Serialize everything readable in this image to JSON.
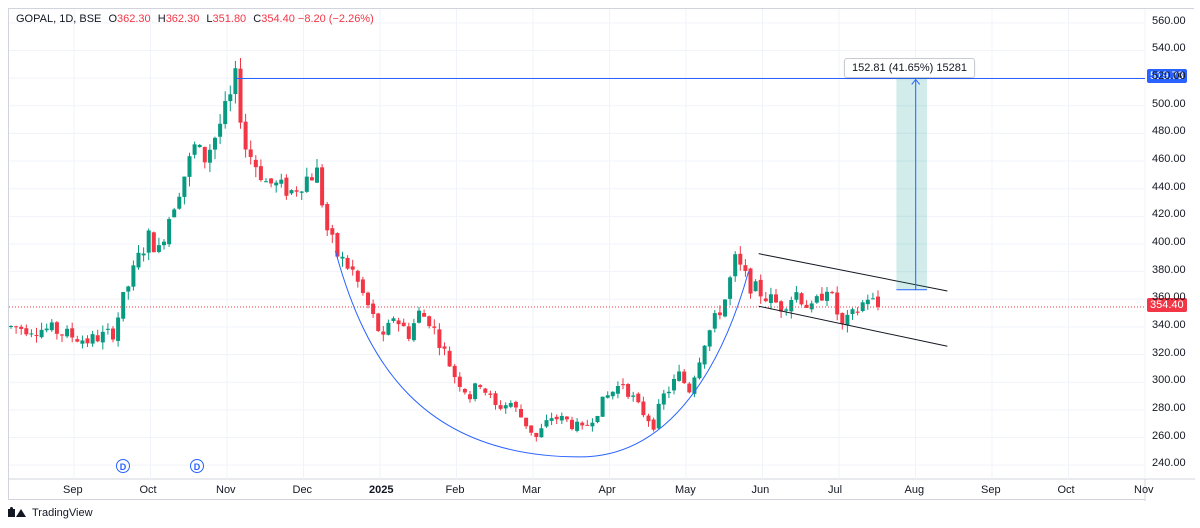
{
  "header": {
    "symbol": "GOPAL, 1D, BSE",
    "open_label": "O",
    "open": "362.30",
    "high_label": "H",
    "high": "362.30",
    "low_label": "L",
    "low": "351.80",
    "close_label": "C",
    "close": "354.40",
    "change": "−8.20 (−2.26%)"
  },
  "footer": {
    "brand": "TradingView"
  },
  "measure": {
    "label": "152.81 (41.65%) 15281"
  },
  "price_tags": {
    "target": "519.73",
    "last": "354.40"
  },
  "dividend_markers": [
    {
      "label": "D"
    },
    {
      "label": "D"
    }
  ],
  "colors": {
    "up": "#089981",
    "down": "#f23645",
    "line": "#2962ff",
    "grid": "#f0f3fa"
  },
  "chart_data": {
    "type": "candlestick",
    "x_axis_labels": [
      "Sep",
      "Oct",
      "Nov",
      "Dec",
      "2025",
      "Feb",
      "Mar",
      "Apr",
      "May",
      "Jun",
      "Jul",
      "Aug",
      "Sep",
      "Oct",
      "Nov"
    ],
    "y_axis_labels": [
      "560.00",
      "540.00",
      "520.00",
      "500.00",
      "480.00",
      "460.00",
      "440.00",
      "420.00",
      "400.00",
      "380.00",
      "360.00",
      "340.00",
      "320.00",
      "300.00",
      "280.00",
      "260.00",
      "240.00"
    ],
    "ylim": [
      230,
      570
    ],
    "price_path": [
      [
        0,
        340
      ],
      [
        8,
        338
      ],
      [
        15,
        330
      ],
      [
        20,
        336
      ],
      [
        22,
        360
      ],
      [
        25,
        390
      ],
      [
        27,
        405
      ],
      [
        29,
        395
      ],
      [
        31,
        420
      ],
      [
        33,
        440
      ],
      [
        36,
        470
      ],
      [
        38,
        462
      ],
      [
        40,
        478
      ],
      [
        43,
        505
      ],
      [
        44,
        519
      ],
      [
        46,
        470
      ],
      [
        50,
        445
      ],
      [
        55,
        438
      ],
      [
        58,
        448
      ],
      [
        60,
        452
      ],
      [
        62,
        410
      ],
      [
        64,
        392
      ],
      [
        67,
        380
      ],
      [
        70,
        355
      ],
      [
        73,
        330
      ],
      [
        75,
        348
      ],
      [
        78,
        335
      ],
      [
        80,
        350
      ],
      [
        82,
        345
      ],
      [
        84,
        330
      ],
      [
        87,
        305
      ],
      [
        90,
        290
      ],
      [
        92,
        300
      ],
      [
        95,
        282
      ],
      [
        98,
        285
      ],
      [
        101,
        270
      ],
      [
        103,
        260
      ],
      [
        106,
        275
      ],
      [
        109,
        272
      ],
      [
        112,
        265
      ],
      [
        115,
        280
      ],
      [
        117,
        290
      ],
      [
        120,
        300
      ],
      [
        123,
        282
      ],
      [
        126,
        270
      ],
      [
        128,
        290
      ],
      [
        131,
        305
      ],
      [
        133,
        295
      ],
      [
        136,
        330
      ],
      [
        138,
        345
      ],
      [
        140,
        360
      ],
      [
        142,
        388
      ],
      [
        145,
        370
      ],
      [
        148,
        362
      ],
      [
        151,
        355
      ],
      [
        154,
        365
      ],
      [
        157,
        352
      ],
      [
        160,
        370
      ],
      [
        163,
        340
      ],
      [
        166,
        352
      ],
      [
        168,
        362
      ],
      [
        170,
        354
      ]
    ],
    "reference_lines": [
      {
        "name": "resistance",
        "y": 519.73
      },
      {
        "name": "last-price",
        "y": 354.4
      }
    ],
    "channel": {
      "upper": [
        [
          147,
          393
        ],
        [
          184,
          366
        ]
      ],
      "lower": [
        [
          147,
          355
        ],
        [
          184,
          326
        ]
      ]
    },
    "cup_curve": {
      "start": [
        64,
        395
      ],
      "bottom": [
        112,
        246
      ],
      "end": [
        145,
        380
      ]
    },
    "measure": {
      "from": 366.92,
      "to": 519.73,
      "change": 152.81,
      "percent": 41.65
    }
  }
}
